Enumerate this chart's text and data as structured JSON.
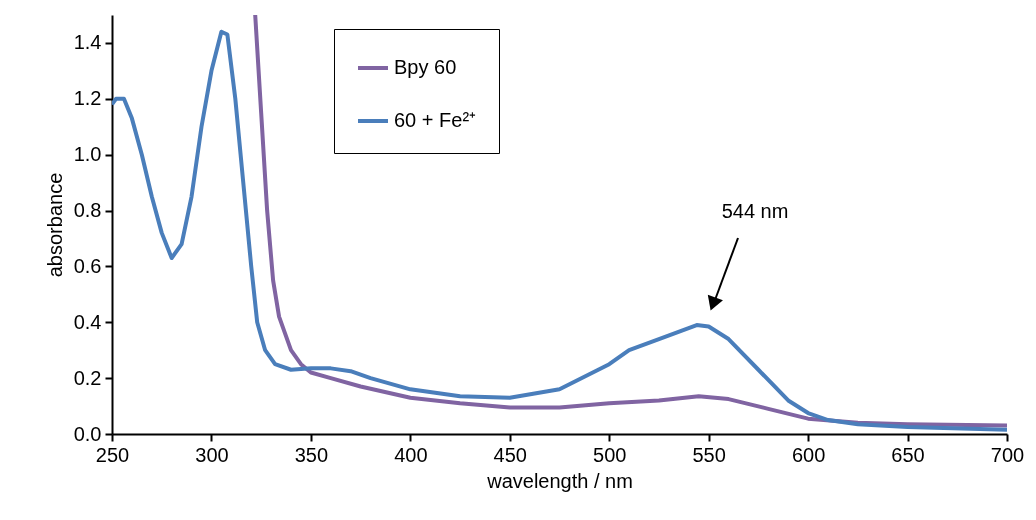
{
  "chart_data": {
    "type": "line",
    "xlabel": "wavelength / nm",
    "ylabel": "absorbance",
    "xlim": [
      250,
      700
    ],
    "xticks": [
      250,
      300,
      350,
      400,
      450,
      500,
      550,
      600,
      650,
      700
    ],
    "ylim": [
      0,
      1.5
    ],
    "yticks": [
      {
        "value": 0,
        "label": "0.0"
      },
      0.2,
      0.4,
      0.6,
      0.8,
      {
        "value": 1,
        "label": "1.0"
      },
      1.2,
      1.4
    ],
    "grid": false,
    "legend": "top",
    "marker": "none",
    "line_style": "solid",
    "annotations": [
      "544 nm"
    ],
    "series": [
      {
        "name": "Bpy 60",
        "color": "#8064a2",
        "x": [
          322,
          325,
          328,
          331,
          334,
          337,
          340,
          345,
          350,
          360,
          375,
          400,
          425,
          450,
          475,
          500,
          525,
          545,
          560,
          580,
          600,
          625,
          650,
          700
        ],
        "values": [
          1.5,
          1.15,
          0.8,
          0.55,
          0.42,
          0.36,
          0.3,
          0.25,
          0.22,
          0.2,
          0.17,
          0.13,
          0.11,
          0.095,
          0.095,
          0.11,
          0.12,
          0.135,
          0.125,
          0.09,
          0.055,
          0.04,
          0.035,
          0.03
        ]
      },
      {
        "name": "60 + Fe²⁺",
        "color": "#4a7ebb",
        "x": [
          250,
          252,
          256,
          260,
          265,
          270,
          275,
          280,
          285,
          290,
          295,
          300,
          305,
          308,
          312,
          316,
          320,
          323,
          327,
          332,
          340,
          350,
          360,
          370,
          380,
          400,
          425,
          450,
          475,
          500,
          510,
          525,
          544,
          550,
          560,
          575,
          590,
          600,
          610,
          625,
          650,
          700
        ],
        "values": [
          1.18,
          1.2,
          1.2,
          1.13,
          1.0,
          0.85,
          0.72,
          0.63,
          0.68,
          0.85,
          1.1,
          1.3,
          1.44,
          1.43,
          1.2,
          0.9,
          0.6,
          0.4,
          0.3,
          0.25,
          0.23,
          0.235,
          0.235,
          0.225,
          0.2,
          0.16,
          0.135,
          0.13,
          0.16,
          0.25,
          0.3,
          0.34,
          0.39,
          0.385,
          0.34,
          0.23,
          0.12,
          0.075,
          0.05,
          0.035,
          0.025,
          0.015
        ]
      }
    ]
  }
}
